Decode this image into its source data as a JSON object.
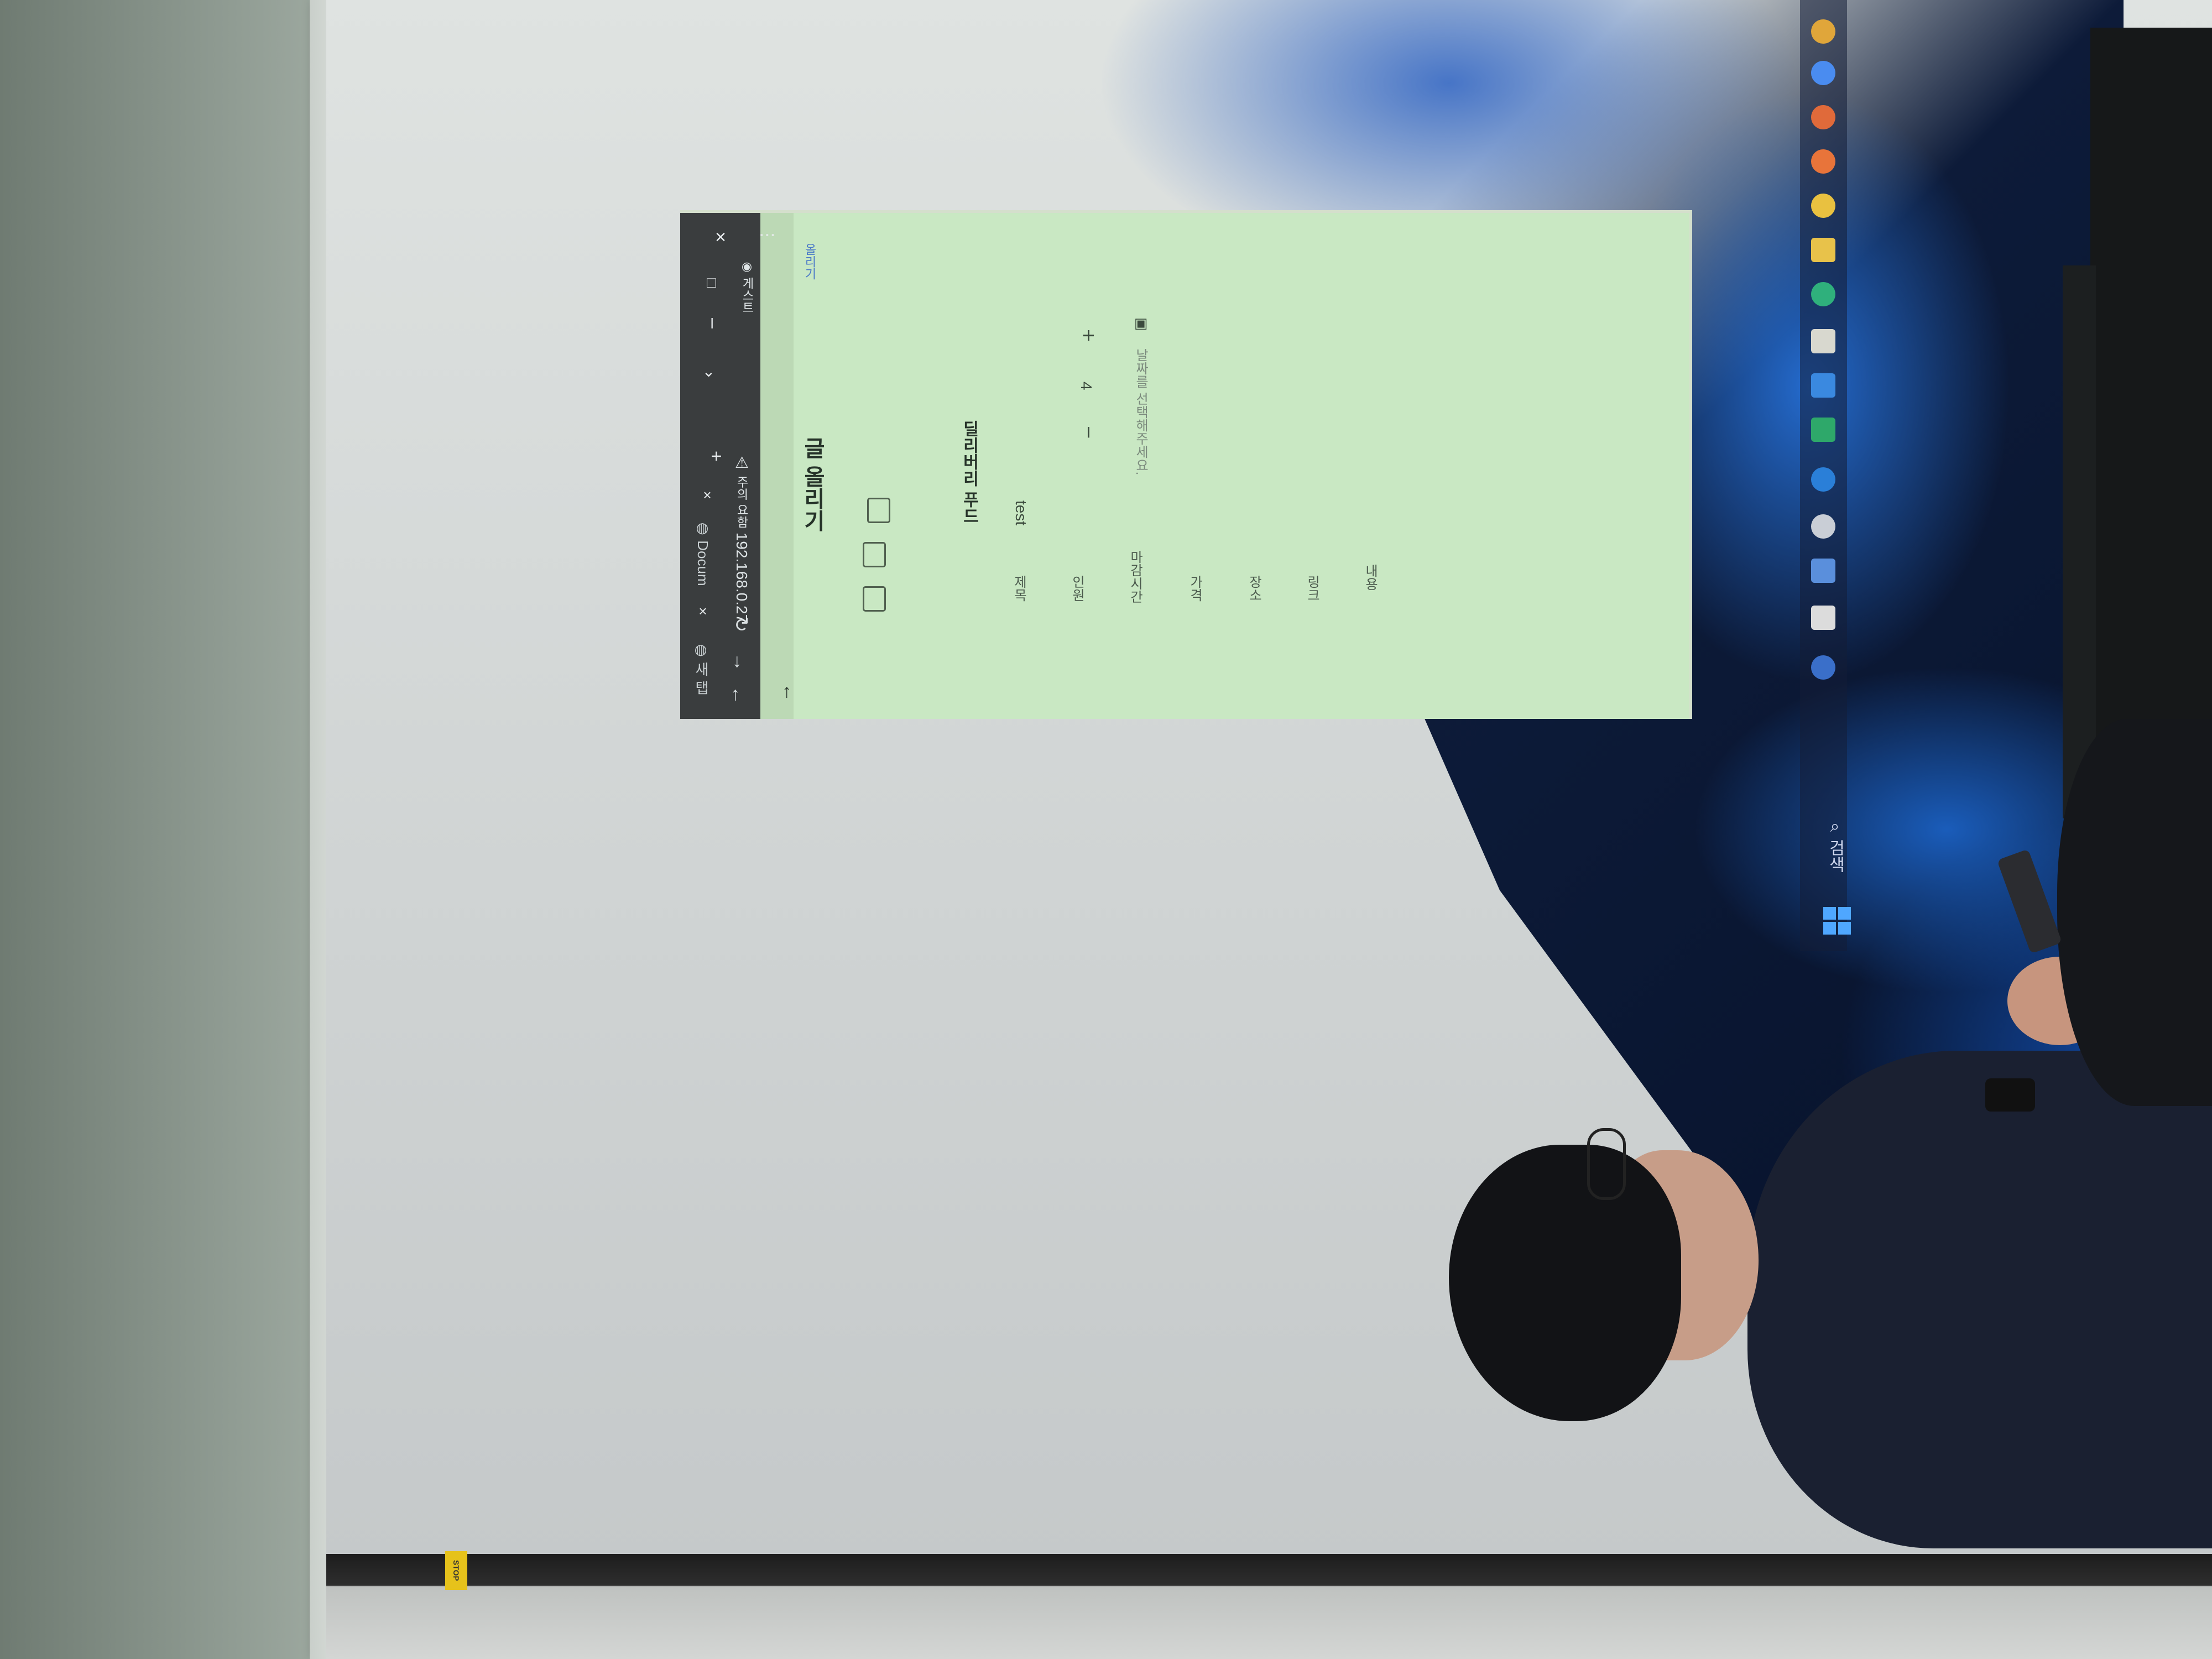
{
  "browser": {
    "tab1_label": "새 탭",
    "tab2_label": "Docum",
    "bookmark_label": "주의 요함",
    "url": "192.168.0.27",
    "profile_label": "게스트"
  },
  "page": {
    "title": "글 올리기",
    "top_link": "올리기",
    "fields": {
      "title_label": "제목",
      "title_value": "test",
      "store_label": "",
      "store_value": "딜리버리 푸드",
      "count_label": "인원",
      "count_value": "4",
      "time_label": "마감시간",
      "time_placeholder": "날짜를 선택해주세요.",
      "price_label": "가격",
      "place_label": "장소",
      "link_label": "링크",
      "content_label": "내용"
    },
    "stepper_minus": "−",
    "stepper_plus": "+"
  },
  "taskbar": {
    "search_label": "검색"
  },
  "sticker": {
    "label": "STOP"
  },
  "colors": {
    "page_bg": "#c9e8c3",
    "titlebar_bg": "#3a3d3e",
    "link": "#4a79c8"
  }
}
